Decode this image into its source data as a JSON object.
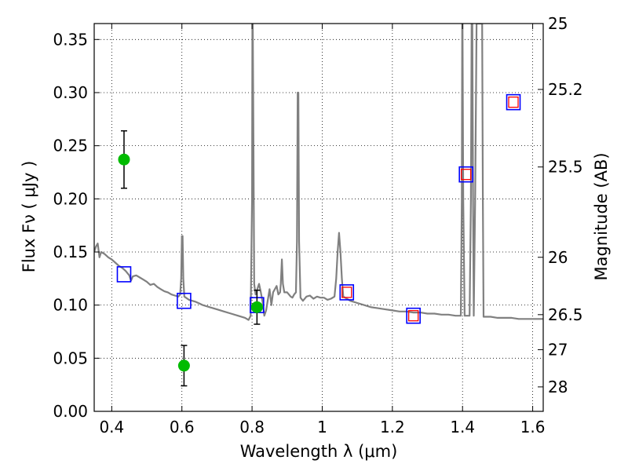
{
  "chart_data": {
    "type": "scatter",
    "xlabel": "Wavelength  λ (μm)",
    "ylabel": "Flux  Fν  ( μJy )",
    "ylabel_right": "Magnitude (AB)",
    "xlim": [
      0.35,
      1.63
    ],
    "ylim": [
      0.0,
      0.365
    ],
    "grid": true,
    "x_ticks": [
      0.4,
      0.6,
      0.8,
      1.0,
      1.2,
      1.4,
      1.6
    ],
    "x_tick_labels": [
      "0.4",
      "0.6",
      "0.8",
      "1",
      "1.2",
      "1.4",
      "1.6"
    ],
    "y_ticks": [
      0.0,
      0.05,
      0.1,
      0.15,
      0.2,
      0.25,
      0.3,
      0.35
    ],
    "y_tick_labels": [
      "0.00",
      "0.05",
      "0.10",
      "0.15",
      "0.20",
      "0.25",
      "0.30",
      "0.35"
    ],
    "right_ticks": [
      {
        "label": "25",
        "flux": 0.365
      },
      {
        "label": "25.2",
        "flux": 0.303
      },
      {
        "label": "25.5",
        "flux": 0.23
      },
      {
        "label": "26",
        "flux": 0.145
      },
      {
        "label": "26.5",
        "flux": 0.091
      },
      {
        "label": "27",
        "flux": 0.058
      },
      {
        "label": "28",
        "flux": 0.023
      }
    ],
    "colors": {
      "model": "#808080",
      "photometry": "#00bb00",
      "model_band": "#0000ff",
      "model_band_inner": "#ff0000",
      "errorbar": "#000000"
    },
    "series": [
      {
        "style": "line",
        "points": [
          [
            0.35,
            0.15
          ],
          [
            0.355,
            0.155
          ],
          [
            0.36,
            0.158
          ],
          [
            0.365,
            0.145
          ],
          [
            0.37,
            0.15
          ],
          [
            0.38,
            0.148
          ],
          [
            0.39,
            0.145
          ],
          [
            0.4,
            0.143
          ],
          [
            0.41,
            0.14
          ],
          [
            0.42,
            0.137
          ],
          [
            0.43,
            0.135
          ],
          [
            0.44,
            0.132
          ],
          [
            0.45,
            0.128
          ],
          [
            0.455,
            0.123
          ],
          [
            0.46,
            0.127
          ],
          [
            0.47,
            0.128
          ],
          [
            0.48,
            0.126
          ],
          [
            0.49,
            0.124
          ],
          [
            0.5,
            0.122
          ],
          [
            0.51,
            0.119
          ],
          [
            0.52,
            0.12
          ],
          [
            0.53,
            0.117
          ],
          [
            0.54,
            0.115
          ],
          [
            0.55,
            0.113
          ],
          [
            0.56,
            0.112
          ],
          [
            0.57,
            0.11
          ],
          [
            0.58,
            0.109
          ],
          [
            0.59,
            0.108
          ],
          [
            0.595,
            0.11
          ],
          [
            0.598,
            0.125
          ],
          [
            0.6,
            0.165
          ],
          [
            0.602,
            0.165
          ],
          [
            0.604,
            0.125
          ],
          [
            0.607,
            0.108
          ],
          [
            0.62,
            0.105
          ],
          [
            0.64,
            0.103
          ],
          [
            0.66,
            0.1
          ],
          [
            0.68,
            0.098
          ],
          [
            0.7,
            0.096
          ],
          [
            0.72,
            0.094
          ],
          [
            0.74,
            0.092
          ],
          [
            0.76,
            0.09
          ],
          [
            0.78,
            0.088
          ],
          [
            0.79,
            0.086
          ],
          [
            0.796,
            0.09
          ],
          [
            0.8,
            0.2
          ],
          [
            0.801,
            0.365
          ],
          [
            0.802,
            0.365
          ],
          [
            0.804,
            0.25
          ],
          [
            0.806,
            0.12
          ],
          [
            0.81,
            0.11
          ],
          [
            0.815,
            0.115
          ],
          [
            0.82,
            0.12
          ],
          [
            0.825,
            0.112
          ],
          [
            0.83,
            0.103
          ],
          [
            0.835,
            0.09
          ],
          [
            0.84,
            0.095
          ],
          [
            0.85,
            0.115
          ],
          [
            0.855,
            0.1
          ],
          [
            0.86,
            0.112
          ],
          [
            0.87,
            0.118
          ],
          [
            0.875,
            0.11
          ],
          [
            0.88,
            0.112
          ],
          [
            0.882,
            0.12
          ],
          [
            0.885,
            0.143
          ],
          [
            0.888,
            0.12
          ],
          [
            0.892,
            0.112
          ],
          [
            0.9,
            0.112
          ],
          [
            0.91,
            0.108
          ],
          [
            0.915,
            0.107
          ],
          [
            0.92,
            0.11
          ],
          [
            0.925,
            0.112
          ],
          [
            0.928,
            0.16
          ],
          [
            0.93,
            0.3
          ],
          [
            0.932,
            0.3
          ],
          [
            0.934,
            0.16
          ],
          [
            0.938,
            0.107
          ],
          [
            0.945,
            0.104
          ],
          [
            0.955,
            0.108
          ],
          [
            0.965,
            0.109
          ],
          [
            0.975,
            0.106
          ],
          [
            0.985,
            0.108
          ],
          [
            0.995,
            0.107
          ],
          [
            1.005,
            0.107
          ],
          [
            1.015,
            0.105
          ],
          [
            1.025,
            0.106
          ],
          [
            1.035,
            0.108
          ],
          [
            1.04,
            0.125
          ],
          [
            1.044,
            0.15
          ],
          [
            1.048,
            0.168
          ],
          [
            1.052,
            0.15
          ],
          [
            1.056,
            0.125
          ],
          [
            1.06,
            0.108
          ],
          [
            1.08,
            0.104
          ],
          [
            1.1,
            0.102
          ],
          [
            1.12,
            0.1
          ],
          [
            1.14,
            0.098
          ],
          [
            1.16,
            0.097
          ],
          [
            1.18,
            0.096
          ],
          [
            1.2,
            0.095
          ],
          [
            1.22,
            0.094
          ],
          [
            1.24,
            0.094
          ],
          [
            1.26,
            0.093
          ],
          [
            1.28,
            0.093
          ],
          [
            1.3,
            0.092
          ],
          [
            1.32,
            0.092
          ],
          [
            1.34,
            0.091
          ],
          [
            1.36,
            0.091
          ],
          [
            1.38,
            0.09
          ],
          [
            1.395,
            0.09
          ],
          [
            1.398,
            0.2
          ],
          [
            1.399,
            0.365
          ],
          [
            1.4,
            0.365
          ],
          [
            1.402,
            0.2
          ],
          [
            1.406,
            0.09
          ],
          [
            1.42,
            0.09
          ],
          [
            1.424,
            0.2
          ],
          [
            1.426,
            0.365
          ],
          [
            1.428,
            0.365
          ],
          [
            1.43,
            0.2
          ],
          [
            1.432,
            0.09
          ],
          [
            1.436,
            0.2
          ],
          [
            1.44,
            0.365
          ],
          [
            1.456,
            0.365
          ],
          [
            1.458,
            0.2
          ],
          [
            1.46,
            0.089
          ],
          [
            1.48,
            0.089
          ],
          [
            1.5,
            0.088
          ],
          [
            1.52,
            0.088
          ],
          [
            1.54,
            0.088
          ],
          [
            1.56,
            0.087
          ],
          [
            1.58,
            0.087
          ],
          [
            1.6,
            0.087
          ],
          [
            1.63,
            0.087
          ]
        ]
      },
      {
        "style": "circle-errorbar",
        "points": [
          {
            "x": 0.435,
            "y": 0.237,
            "err": 0.027
          },
          {
            "x": 0.606,
            "y": 0.043,
            "err": 0.019
          },
          {
            "x": 0.814,
            "y": 0.098,
            "err": 0.016
          }
        ]
      },
      {
        "style": "square",
        "points": [
          {
            "x": 0.435,
            "y": 0.129,
            "inner": false
          },
          {
            "x": 0.606,
            "y": 0.104,
            "inner": false
          },
          {
            "x": 0.814,
            "y": 0.1,
            "inner": false
          },
          {
            "x": 1.07,
            "y": 0.112,
            "inner": true
          },
          {
            "x": 1.26,
            "y": 0.09,
            "inner": true
          },
          {
            "x": 1.41,
            "y": 0.223,
            "inner": true
          },
          {
            "x": 1.545,
            "y": 0.291,
            "inner": true
          }
        ]
      }
    ]
  }
}
